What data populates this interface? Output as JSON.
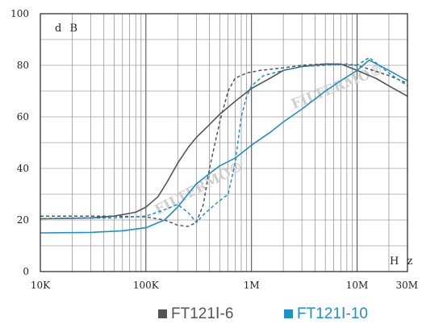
{
  "chart_data": {
    "type": "line",
    "title": "",
    "x_unit": "H z",
    "y_unit": "d B",
    "x_scale": "log",
    "xlim": [
      10000,
      30000000
    ],
    "ylim": [
      0,
      100
    ],
    "grid": true,
    "x_ticks": [
      {
        "value": 10000,
        "label": "10K"
      },
      {
        "value": 100000,
        "label": "100K"
      },
      {
        "value": 1000000,
        "label": "1M"
      },
      {
        "value": 10000000,
        "label": "10M"
      },
      {
        "value": 30000000,
        "label": "30M"
      }
    ],
    "y_ticks": [
      {
        "value": 0,
        "label": "0"
      },
      {
        "value": 20,
        "label": "20"
      },
      {
        "value": 40,
        "label": "40"
      },
      {
        "value": 60,
        "label": "60"
      },
      {
        "value": 80,
        "label": "80"
      },
      {
        "value": 100,
        "label": "100"
      }
    ],
    "legend_position": "bottom",
    "series": [
      {
        "name": "FT121Ⅰ-6",
        "color": "#555555",
        "legend": true,
        "style": "solid",
        "points": [
          [
            10000,
            20.5
          ],
          [
            30000,
            20.8
          ],
          [
            50000,
            21.5
          ],
          [
            80000,
            23
          ],
          [
            100000,
            25
          ],
          [
            130000,
            29
          ],
          [
            160000,
            35
          ],
          [
            200000,
            42
          ],
          [
            250000,
            48
          ],
          [
            300000,
            52
          ],
          [
            400000,
            57
          ],
          [
            500000,
            61
          ],
          [
            700000,
            66
          ],
          [
            1000000,
            71
          ],
          [
            1500000,
            75
          ],
          [
            2000000,
            78
          ],
          [
            3000000,
            79.5
          ],
          [
            5000000,
            80.5
          ],
          [
            7000000,
            80.5
          ],
          [
            10000000,
            78
          ],
          [
            15000000,
            75
          ],
          [
            20000000,
            72
          ],
          [
            30000000,
            68
          ]
        ]
      },
      {
        "name": "FT121Ⅰ-6 (dashed)",
        "color": "#555555",
        "legend": false,
        "style": "dashed",
        "points": [
          [
            10000,
            21.5
          ],
          [
            50000,
            21.5
          ],
          [
            100000,
            21.2
          ],
          [
            150000,
            20
          ],
          [
            200000,
            18
          ],
          [
            250000,
            17.5
          ],
          [
            300000,
            19
          ],
          [
            350000,
            26
          ],
          [
            400000,
            40
          ],
          [
            500000,
            58
          ],
          [
            600000,
            70
          ],
          [
            700000,
            75
          ],
          [
            900000,
            77
          ],
          [
            1200000,
            78
          ],
          [
            2000000,
            79
          ],
          [
            3000000,
            80
          ],
          [
            5000000,
            80.5
          ],
          [
            10000000,
            80
          ],
          [
            20000000,
            76
          ],
          [
            30000000,
            73
          ]
        ]
      },
      {
        "name": "FT121Ⅰ-10",
        "color": "#1e90c8",
        "legend": true,
        "style": "solid",
        "points": [
          [
            10000,
            15
          ],
          [
            30000,
            15.2
          ],
          [
            60000,
            15.8
          ],
          [
            100000,
            17
          ],
          [
            150000,
            20
          ],
          [
            200000,
            25
          ],
          [
            250000,
            30
          ],
          [
            300000,
            34
          ],
          [
            400000,
            38
          ],
          [
            500000,
            41
          ],
          [
            700000,
            44
          ],
          [
            1000000,
            49
          ],
          [
            1500000,
            54
          ],
          [
            2000000,
            58
          ],
          [
            3000000,
            63
          ],
          [
            5000000,
            70
          ],
          [
            7000000,
            74
          ],
          [
            10000000,
            78
          ],
          [
            13000000,
            82
          ],
          [
            20000000,
            78
          ],
          [
            30000000,
            74
          ]
        ]
      },
      {
        "name": "FT121Ⅰ-10 (dashed)",
        "color": "#1e90c8",
        "legend": false,
        "style": "dashed",
        "points": [
          [
            10000,
            20.5
          ],
          [
            50000,
            20.8
          ],
          [
            100000,
            21.5
          ],
          [
            150000,
            24
          ],
          [
            200000,
            26
          ],
          [
            250000,
            23
          ],
          [
            300000,
            19
          ],
          [
            350000,
            22
          ],
          [
            450000,
            26
          ],
          [
            600000,
            30
          ],
          [
            700000,
            42
          ],
          [
            800000,
            60
          ],
          [
            900000,
            68
          ],
          [
            1000000,
            72
          ],
          [
            1300000,
            76
          ],
          [
            2000000,
            78
          ],
          [
            3000000,
            79.5
          ],
          [
            5000000,
            80
          ],
          [
            8000000,
            80.5
          ],
          [
            10000000,
            80
          ],
          [
            13000000,
            83
          ],
          [
            20000000,
            77
          ],
          [
            30000000,
            72
          ]
        ]
      }
    ],
    "watermark": "FILTERMO®"
  }
}
